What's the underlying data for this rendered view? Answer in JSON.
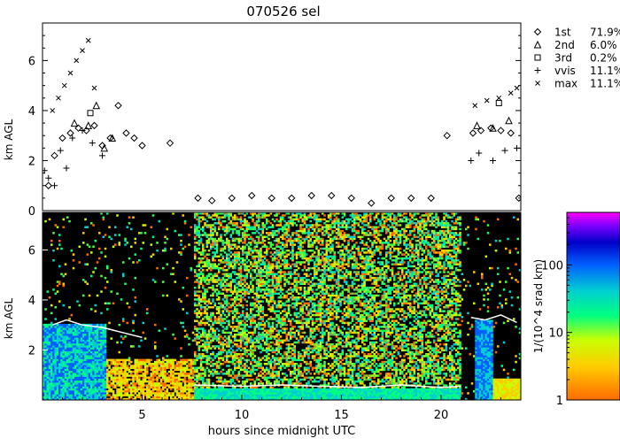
{
  "chart_data": [
    {
      "type": "scatter",
      "title": "070526 sel",
      "ylabel": "km AGL",
      "xlim": [
        0,
        24
      ],
      "ylim": [
        0,
        7.5
      ],
      "yticks": [
        0,
        2,
        4,
        6
      ],
      "legend_placement": "right",
      "series": [
        {
          "name": "1st",
          "pct": "71.9%",
          "marker": "diamond",
          "x": [
            0.3,
            0.6,
            1.0,
            1.4,
            1.8,
            2.2,
            2.6,
            3.0,
            3.4,
            3.8,
            4.2,
            4.6,
            5.0,
            6.4,
            7.8,
            8.5,
            9.5,
            10.5,
            11.5,
            12.5,
            13.5,
            14.5,
            15.5,
            16.5,
            17.5,
            18.5,
            19.5,
            20.3,
            21.6,
            22.0,
            22.5,
            23.0,
            23.5,
            23.9
          ],
          "y": [
            1.0,
            2.2,
            2.9,
            3.1,
            3.3,
            3.2,
            3.4,
            2.6,
            2.9,
            4.2,
            3.1,
            2.9,
            2.6,
            2.7,
            0.5,
            0.4,
            0.5,
            0.6,
            0.5,
            0.5,
            0.6,
            0.6,
            0.5,
            0.3,
            0.5,
            0.5,
            0.5,
            3.0,
            3.1,
            3.2,
            3.3,
            3.2,
            3.1,
            0.5
          ]
        },
        {
          "name": "2nd",
          "pct": "6.0%",
          "marker": "triangle",
          "x": [
            1.6,
            2.3,
            2.7,
            3.1,
            3.5,
            21.8,
            22.6,
            23.4
          ],
          "y": [
            3.5,
            3.4,
            4.2,
            2.5,
            2.9,
            3.4,
            3.3,
            3.6
          ]
        },
        {
          "name": "3rd",
          "pct": "0.2%",
          "marker": "square",
          "x": [
            2.4,
            22.9
          ],
          "y": [
            3.9,
            4.3
          ]
        },
        {
          "name": "vvis",
          "pct": "11.1%",
          "marker": "plus",
          "x": [
            0.1,
            0.3,
            0.6,
            0.9,
            1.2,
            1.5,
            2.0,
            2.5,
            3.0,
            21.5,
            21.9,
            22.6,
            23.2,
            23.8
          ],
          "y": [
            1.6,
            1.3,
            1.0,
            2.4,
            1.7,
            2.9,
            3.2,
            2.7,
            2.2,
            2.0,
            2.3,
            2.0,
            2.4,
            2.5
          ]
        },
        {
          "name": "max",
          "pct": "11.1%",
          "marker": "cross",
          "x": [
            0.5,
            0.8,
            1.1,
            1.4,
            1.7,
            2.0,
            2.3,
            2.6,
            21.7,
            22.3,
            22.9,
            23.5,
            23.8
          ],
          "y": [
            4.0,
            4.5,
            5.0,
            5.5,
            6.0,
            6.4,
            6.8,
            4.9,
            4.2,
            4.4,
            4.5,
            4.7,
            4.9
          ]
        }
      ]
    },
    {
      "type": "heatmap",
      "xlabel": "hours since midnight UTC",
      "ylabel": "km AGL",
      "xlim": [
        0,
        24
      ],
      "ylim": [
        0,
        7.5
      ],
      "xticks": [
        5,
        10,
        15,
        20
      ],
      "yticks": [
        2,
        4,
        6
      ],
      "colorbar": {
        "label": "1/(10^4 srad km)",
        "scale": "log",
        "ticks": [
          "1",
          "10",
          "100"
        ],
        "range": [
          1,
          600
        ],
        "colors": [
          "#ff6a00",
          "#ffcc00",
          "#c8ff00",
          "#00ff80",
          "#00d0d0",
          "#0060ff",
          "#0000c8",
          "#8000ff",
          "#ff00ff"
        ]
      }
    }
  ]
}
